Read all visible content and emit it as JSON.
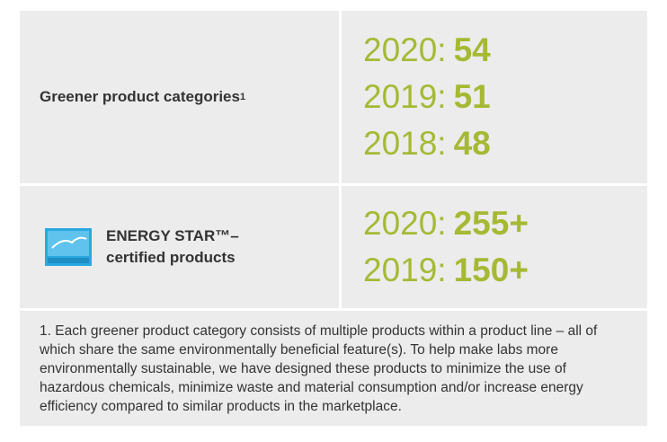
{
  "rows": [
    {
      "label": "Greener product categories",
      "footnote_ref": "1",
      "entries": [
        {
          "year": "2020:",
          "value": "54"
        },
        {
          "year": "2019:",
          "value": "51"
        },
        {
          "year": "2018:",
          "value": "48"
        }
      ]
    },
    {
      "label_lines": [
        "ENERGY STAR™–",
        "certified products"
      ],
      "entries": [
        {
          "year": "2020:",
          "value": "255+"
        },
        {
          "year": "2019:",
          "value": "150+"
        }
      ]
    }
  ],
  "footnote": "1. Each greener product category consists of multiple products within a product line – all of which share the same environmentally beneficial feature(s). To help make labs more environmentally sustainable, we have designed these products to minimize the use of hazardous chemicals, minimize waste and material consumption and/or increase energy efficiency compared to similar products in the marketplace."
}
